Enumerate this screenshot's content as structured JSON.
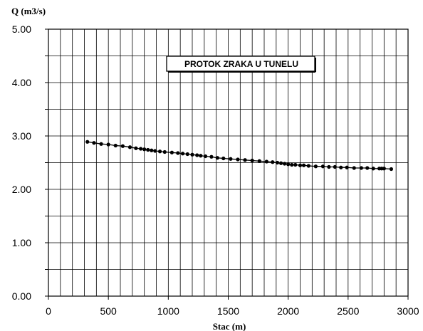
{
  "chart_data": {
    "type": "line",
    "title": "PROTOK ZRAKA U TUNELU",
    "xlabel": "Stac (m)",
    "ylabel": "Q (m3/s)",
    "xlim": [
      0,
      3000
    ],
    "ylim": [
      0,
      5
    ],
    "x_ticks": [
      "0",
      "500",
      "1000",
      "1500",
      "2000",
      "2500",
      "3000"
    ],
    "y_ticks": [
      "0.00",
      "1.00",
      "2.00",
      "3.00",
      "4.00",
      "5.00"
    ],
    "grid": true,
    "series": [
      {
        "x": [
          325,
          380,
          440,
          500,
          560,
          620,
          680,
          730,
          770,
          800,
          830,
          860,
          890,
          930,
          970,
          1030,
          1080,
          1120,
          1160,
          1200,
          1240,
          1270,
          1310,
          1360,
          1410,
          1460,
          1520,
          1580,
          1640,
          1700,
          1760,
          1820,
          1870,
          1910,
          1940,
          1970,
          2000,
          2030,
          2060,
          2100,
          2130,
          2170,
          2230,
          2290,
          2340,
          2390,
          2440,
          2490,
          2550,
          2610,
          2660,
          2710,
          2760,
          2780,
          2800,
          2860
        ],
        "y": [
          2.89,
          2.87,
          2.85,
          2.84,
          2.82,
          2.81,
          2.79,
          2.77,
          2.76,
          2.75,
          2.74,
          2.73,
          2.72,
          2.71,
          2.7,
          2.69,
          2.68,
          2.67,
          2.66,
          2.65,
          2.64,
          2.63,
          2.62,
          2.61,
          2.59,
          2.58,
          2.57,
          2.56,
          2.55,
          2.54,
          2.53,
          2.52,
          2.51,
          2.5,
          2.49,
          2.48,
          2.47,
          2.46,
          2.46,
          2.45,
          2.45,
          2.44,
          2.43,
          2.43,
          2.42,
          2.42,
          2.41,
          2.41,
          2.4,
          2.4,
          2.4,
          2.39,
          2.39,
          2.39,
          2.39,
          2.38
        ]
      }
    ]
  }
}
